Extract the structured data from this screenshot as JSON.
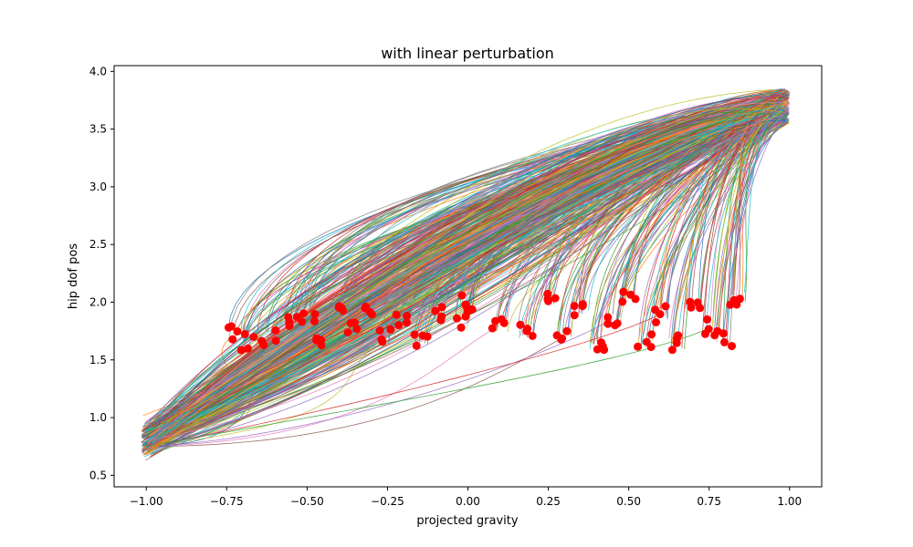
{
  "chart_data": {
    "type": "line",
    "title": "with linear perturbation",
    "xlabel": "projected gravity",
    "ylabel": "hip dof pos",
    "xlim": [
      -1.1,
      1.1
    ],
    "ylim": [
      0.4,
      4.05
    ],
    "xticks": [
      -1.0,
      -0.75,
      -0.5,
      -0.25,
      0.0,
      0.25,
      0.5,
      0.75,
      1.0
    ],
    "xtick_labels": [
      "−1.00",
      "−0.75",
      "−0.50",
      "−0.25",
      "0.00",
      "0.25",
      "0.50",
      "0.75",
      "1.00"
    ],
    "yticks": [
      0.5,
      1.0,
      1.5,
      2.0,
      2.5,
      3.0,
      3.5,
      4.0
    ],
    "ytick_labels": [
      "0.5",
      "1.0",
      "1.5",
      "2.0",
      "2.5",
      "3.0",
      "3.5",
      "4.0"
    ],
    "grid": false,
    "legend": "none",
    "palette": [
      "#1f77b4",
      "#ff7f0e",
      "#2ca02c",
      "#d62728",
      "#9467bd",
      "#8c564b",
      "#e377c2",
      "#7f7f7f",
      "#bcbd22",
      "#17becf"
    ],
    "marker_color": "#ff0000",
    "trajectory_shape": {
      "start": {
        "x": -1.0,
        "y": 0.8
      },
      "low_arc_control": {
        "x": -0.4,
        "y": 0.9
      },
      "peak": {
        "x": 1.0,
        "y": 3.7
      },
      "marker_band_y": [
        1.65,
        2.05
      ]
    },
    "series": [
      {
        "x": [
          -1.0,
          -0.72
        ],
        "y": [
          0.82,
          1.72
        ]
      },
      {
        "x": [
          -1.0,
          -0.68
        ],
        "y": [
          0.78,
          1.66
        ]
      },
      {
        "x": [
          -1.0,
          -0.62
        ],
        "y": [
          0.85,
          1.7
        ]
      },
      {
        "x": [
          -1.0,
          -0.55
        ],
        "y": [
          0.8,
          1.85
        ]
      },
      {
        "x": [
          -1.0,
          -0.5
        ],
        "y": [
          0.75,
          1.9
        ]
      },
      {
        "x": [
          -1.0,
          -0.45
        ],
        "y": [
          0.82,
          1.7
        ]
      },
      {
        "x": [
          -1.0,
          -0.4
        ],
        "y": [
          0.9,
          1.95
        ]
      },
      {
        "x": [
          -1.0,
          -0.35
        ],
        "y": [
          0.8,
          1.75
        ]
      },
      {
        "x": [
          -1.0,
          -0.3
        ],
        "y": [
          0.85,
          1.9
        ]
      },
      {
        "x": [
          -1.0,
          -0.25
        ],
        "y": [
          0.8,
          1.7
        ]
      },
      {
        "x": [
          -1.0,
          -0.2
        ],
        "y": [
          0.78,
          1.85
        ]
      },
      {
        "x": [
          -1.0,
          -0.15
        ],
        "y": [
          0.82,
          1.65
        ]
      },
      {
        "x": [
          -1.0,
          -0.1
        ],
        "y": [
          0.8,
          1.9
        ]
      },
      {
        "x": [
          -1.0,
          -0.02
        ],
        "y": [
          0.8,
          1.85
        ]
      },
      {
        "x": [
          -1.0,
          0.0
        ],
        "y": [
          0.85,
          2.0
        ]
      },
      {
        "x": [
          -1.0,
          0.1
        ],
        "y": [
          0.8,
          1.8
        ]
      },
      {
        "x": [
          -1.0,
          0.18
        ],
        "y": [
          0.78,
          1.75
        ]
      },
      {
        "x": [
          -1.0,
          0.25
        ],
        "y": [
          0.82,
          2.0
        ]
      },
      {
        "x": [
          -1.0,
          0.3
        ],
        "y": [
          0.8,
          1.7
        ]
      },
      {
        "x": [
          -1.0,
          0.35
        ],
        "y": [
          0.8,
          1.95
        ]
      },
      {
        "x": [
          -1.0,
          0.4
        ],
        "y": [
          0.85,
          1.65
        ]
      },
      {
        "x": [
          -1.0,
          0.45
        ],
        "y": [
          0.8,
          1.85
        ]
      },
      {
        "x": [
          -1.0,
          0.5
        ],
        "y": [
          0.78,
          2.05
        ]
      },
      {
        "x": [
          -1.0,
          0.55
        ],
        "y": [
          0.82,
          1.68
        ]
      },
      {
        "x": [
          -1.0,
          0.6
        ],
        "y": [
          0.8,
          1.9
        ]
      },
      {
        "x": [
          -1.0,
          0.65
        ],
        "y": [
          0.8,
          1.65
        ]
      },
      {
        "x": [
          -1.0,
          0.7
        ],
        "y": [
          0.85,
          2.0
        ]
      },
      {
        "x": [
          -1.0,
          0.75
        ],
        "y": [
          0.8,
          1.78
        ]
      },
      {
        "x": [
          -1.0,
          0.8
        ],
        "y": [
          0.78,
          1.68
        ]
      },
      {
        "x": [
          -1.0,
          0.84
        ],
        "y": [
          0.82,
          2.05
        ]
      }
    ]
  }
}
